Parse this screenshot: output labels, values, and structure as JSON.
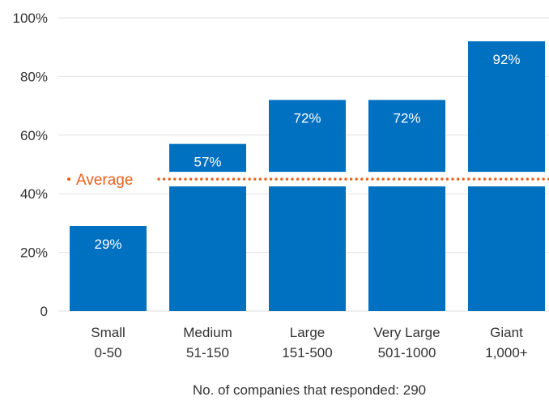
{
  "chart_data": {
    "type": "bar",
    "categories": [
      [
        "Small",
        "0-50"
      ],
      [
        "Medium",
        "51-150"
      ],
      [
        "Large",
        "151-500"
      ],
      [
        "Very Large",
        "501-1000"
      ],
      [
        "Giant",
        "1,000+"
      ]
    ],
    "values": [
      29,
      57,
      72,
      72,
      92
    ],
    "data_labels": [
      "29%",
      "57%",
      "72%",
      "72%",
      "92%"
    ],
    "ylim": [
      0,
      100
    ],
    "yticks": [
      {
        "value": 0,
        "label": "0"
      },
      {
        "value": 20,
        "label": "20%"
      },
      {
        "value": 40,
        "label": "40%"
      },
      {
        "value": 60,
        "label": "60%"
      },
      {
        "value": 80,
        "label": "80%"
      },
      {
        "value": 100,
        "label": "100%"
      }
    ],
    "average": {
      "value": 45,
      "label": "Average"
    },
    "grid": true,
    "xlabel": "No. of companies that responded: 290",
    "colors": {
      "bar": "#0070C0",
      "average": "#E8601C",
      "grid": "#e2e2e2",
      "text": "#333333"
    }
  }
}
